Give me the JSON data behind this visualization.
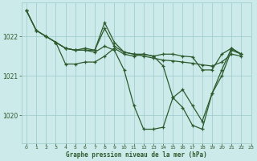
{
  "title": "Graphe pression niveau de la mer (hPa)",
  "bg_color": "#cceaea",
  "line_color": "#2d5a2d",
  "grid_color": "#9ac8c8",
  "xlim": [
    -0.5,
    23
  ],
  "ylim": [
    1019.3,
    1022.85
  ],
  "yticks": [
    1020,
    1021,
    1022
  ],
  "xticks": [
    0,
    1,
    2,
    3,
    4,
    5,
    6,
    7,
    8,
    9,
    10,
    11,
    12,
    13,
    14,
    15,
    16,
    17,
    18,
    19,
    20,
    21,
    22,
    23
  ],
  "series": [
    {
      "points": [
        [
          0,
          1022.65
        ],
        [
          1,
          1022.15
        ],
        [
          2,
          1022.0
        ],
        [
          3,
          1021.85
        ],
        [
          4,
          1021.7
        ],
        [
          5,
          1021.65
        ],
        [
          6,
          1021.7
        ],
        [
          7,
          1021.65
        ],
        [
          8,
          1022.2
        ],
        [
          9,
          1021.75
        ],
        [
          10,
          1021.6
        ],
        [
          11,
          1021.55
        ],
        [
          12,
          1021.5
        ],
        [
          13,
          1021.45
        ],
        [
          14,
          1021.4
        ],
        [
          15,
          1021.38
        ],
        [
          16,
          1021.35
        ],
        [
          17,
          1021.32
        ],
        [
          18,
          1021.28
        ],
        [
          19,
          1021.25
        ],
        [
          20,
          1021.35
        ],
        [
          21,
          1021.55
        ],
        [
          22,
          1021.5
        ]
      ]
    },
    {
      "points": [
        [
          0,
          1022.65
        ],
        [
          1,
          1022.15
        ],
        [
          2,
          1022.0
        ],
        [
          3,
          1021.85
        ],
        [
          4,
          1021.7
        ],
        [
          5,
          1021.65
        ],
        [
          6,
          1021.65
        ],
        [
          7,
          1021.6
        ],
        [
          8,
          1021.75
        ],
        [
          9,
          1021.65
        ],
        [
          10,
          1021.15
        ],
        [
          11,
          1020.25
        ],
        [
          12,
          1019.65
        ],
        [
          13,
          1019.65
        ],
        [
          14,
          1019.7
        ],
        [
          15,
          1020.45
        ],
        [
          16,
          1020.2
        ],
        [
          17,
          1019.75
        ],
        [
          18,
          1019.65
        ],
        [
          19,
          1020.55
        ],
        [
          20,
          1021.0
        ],
        [
          21,
          1021.65
        ],
        [
          22,
          1021.55
        ]
      ]
    },
    {
      "points": [
        [
          3,
          1021.85
        ],
        [
          4,
          1021.3
        ],
        [
          5,
          1021.3
        ],
        [
          6,
          1021.35
        ],
        [
          7,
          1021.35
        ],
        [
          8,
          1021.5
        ],
        [
          9,
          1021.7
        ],
        [
          10,
          1021.55
        ],
        [
          11,
          1021.5
        ],
        [
          12,
          1021.55
        ],
        [
          13,
          1021.5
        ],
        [
          14,
          1021.25
        ],
        [
          15,
          1020.45
        ],
        [
          16,
          1020.65
        ],
        [
          17,
          1020.25
        ],
        [
          18,
          1019.85
        ],
        [
          19,
          1020.55
        ],
        [
          20,
          1021.15
        ],
        [
          21,
          1021.7
        ],
        [
          22,
          1021.55
        ]
      ]
    },
    {
      "points": [
        [
          0,
          1022.65
        ],
        [
          1,
          1022.15
        ],
        [
          2,
          1022.0
        ],
        [
          3,
          1021.85
        ],
        [
          4,
          1021.7
        ],
        [
          5,
          1021.65
        ],
        [
          6,
          1021.65
        ],
        [
          7,
          1021.65
        ],
        [
          8,
          1022.35
        ],
        [
          9,
          1021.85
        ],
        [
          10,
          1021.6
        ],
        [
          11,
          1021.55
        ],
        [
          12,
          1021.55
        ],
        [
          13,
          1021.5
        ],
        [
          14,
          1021.55
        ],
        [
          15,
          1021.55
        ],
        [
          16,
          1021.5
        ],
        [
          17,
          1021.48
        ],
        [
          18,
          1021.15
        ],
        [
          19,
          1021.15
        ],
        [
          20,
          1021.55
        ],
        [
          21,
          1021.7
        ],
        [
          22,
          1021.55
        ]
      ]
    }
  ]
}
